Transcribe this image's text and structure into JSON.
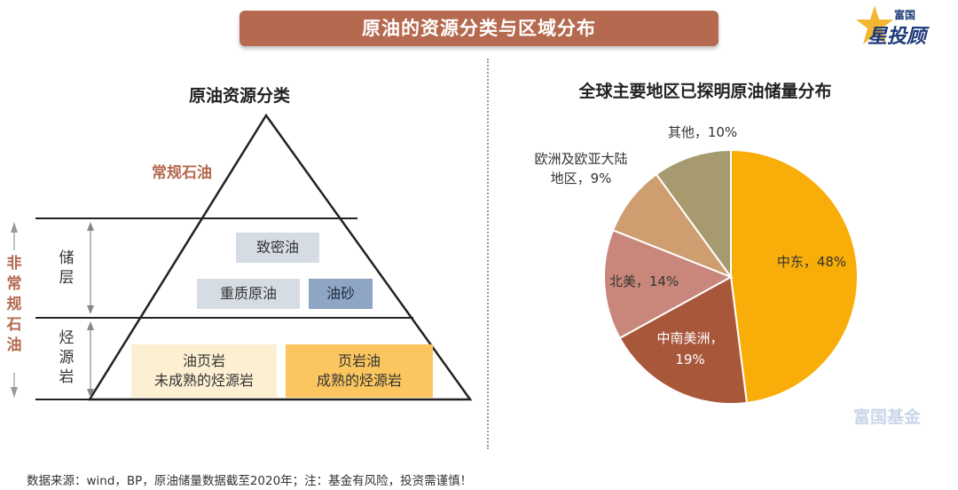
{
  "header": {
    "title": "原油的资源分类与区域分布"
  },
  "logo": {
    "top_text": "富国",
    "main_text": "星投顾",
    "accent": "#f2b632",
    "brand": "#1f3b7a"
  },
  "watermark": "富国基金",
  "left_panel": {
    "title": "原油资源分类",
    "conventional_label": "常规石油",
    "unconventional_label": "非常规石油",
    "reservoir_label": "储层",
    "source_rock_label": "烃源岩",
    "items": {
      "tight_oil": "致密油",
      "heavy_oil": "重质原油",
      "oil_sand": "油砂",
      "oil_shale_line1": "油页岩",
      "oil_shale_line2": "未成熟的烃源岩",
      "shale_oil_line1": "页岩油",
      "shale_oil_line2": "成熟的烃源岩"
    }
  },
  "chart_data": {
    "type": "pie",
    "title": "全球主要地区已探明原油储量分布",
    "slices": [
      {
        "name": "中东",
        "value": 48,
        "label": "中东，48%",
        "color": "#f9ad09"
      },
      {
        "name": "中南美洲",
        "value": 19,
        "label_line1": "中南美洲，",
        "label_line2": "19%",
        "color": "#a9573b"
      },
      {
        "name": "北美",
        "value": 14,
        "label": "北美，14%",
        "color": "#c8877a"
      },
      {
        "name": "欧洲及欧亚大陆地区",
        "value": 9,
        "label_line1": "欧洲及欧亚大陆",
        "label_line2": "地区，9%",
        "color": "#cf9e70"
      },
      {
        "name": "其他",
        "value": 10,
        "label": "其他，10%",
        "color": "#a69a6e"
      }
    ]
  },
  "footnote": "数据来源：wind，BP，原油储量数据截至2020年；注：基金有风险，投资需谨慎！"
}
